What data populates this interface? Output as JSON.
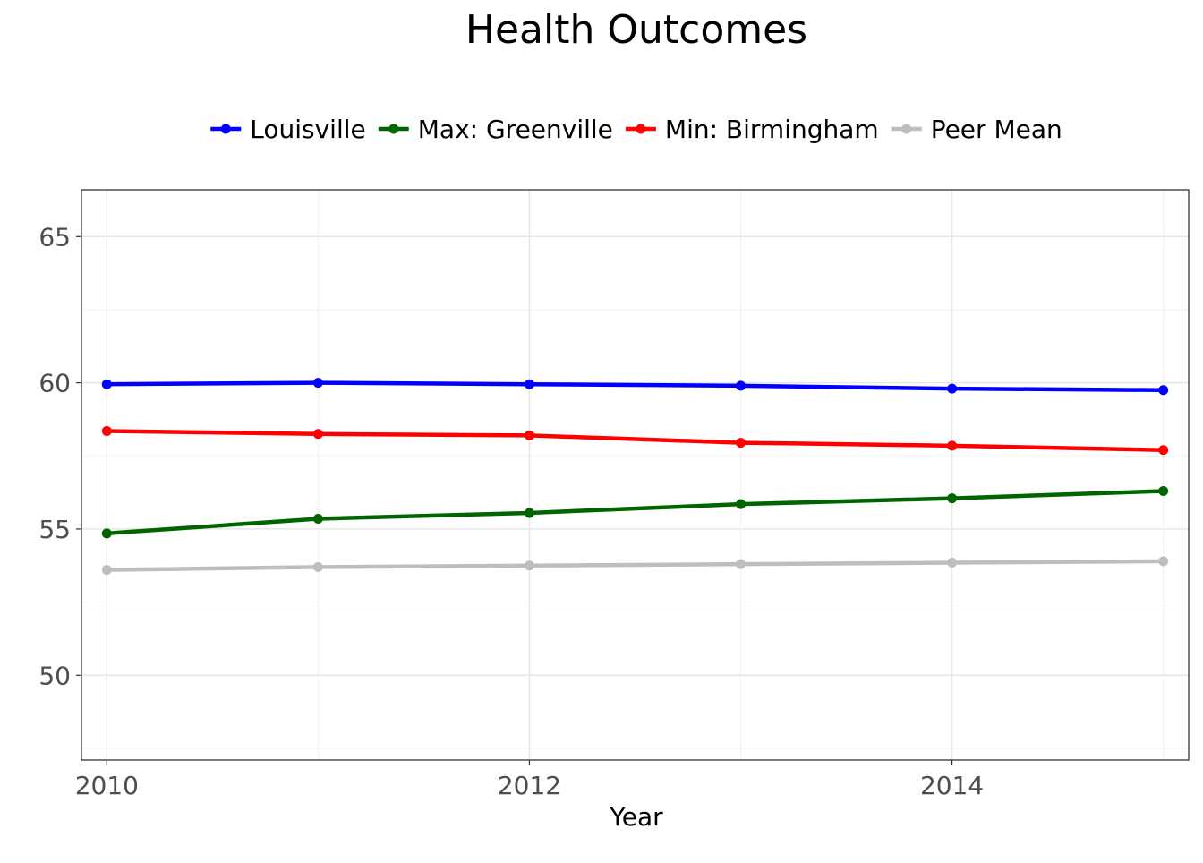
{
  "chart_data": {
    "type": "line",
    "title": "Health Outcomes",
    "xlabel": "Year",
    "ylabel": "",
    "x": [
      2010,
      2011,
      2012,
      2013,
      2014,
      2015
    ],
    "xlim": [
      2009.88,
      2015.12
    ],
    "ylim": [
      47.1,
      66.6
    ],
    "xticks": [
      2010,
      2012,
      2014
    ],
    "yticks": [
      50,
      55,
      60,
      65
    ],
    "grid": true,
    "legend": "top",
    "series": [
      {
        "name": "Louisville",
        "color": "#0000ff",
        "values": [
          59.95,
          60.0,
          59.95,
          59.9,
          59.8,
          59.75
        ]
      },
      {
        "name": "Max: Greenville",
        "color": "#006400",
        "values": [
          54.85,
          55.35,
          55.55,
          55.85,
          56.05,
          56.3
        ]
      },
      {
        "name": "Min: Birmingham",
        "color": "#ff0000",
        "values": [
          58.35,
          58.25,
          58.2,
          57.95,
          57.85,
          57.7
        ]
      },
      {
        "name": "Peer Mean",
        "color": "#bebebe",
        "values": [
          53.6,
          53.7,
          53.75,
          53.8,
          53.85,
          53.9
        ]
      }
    ]
  }
}
